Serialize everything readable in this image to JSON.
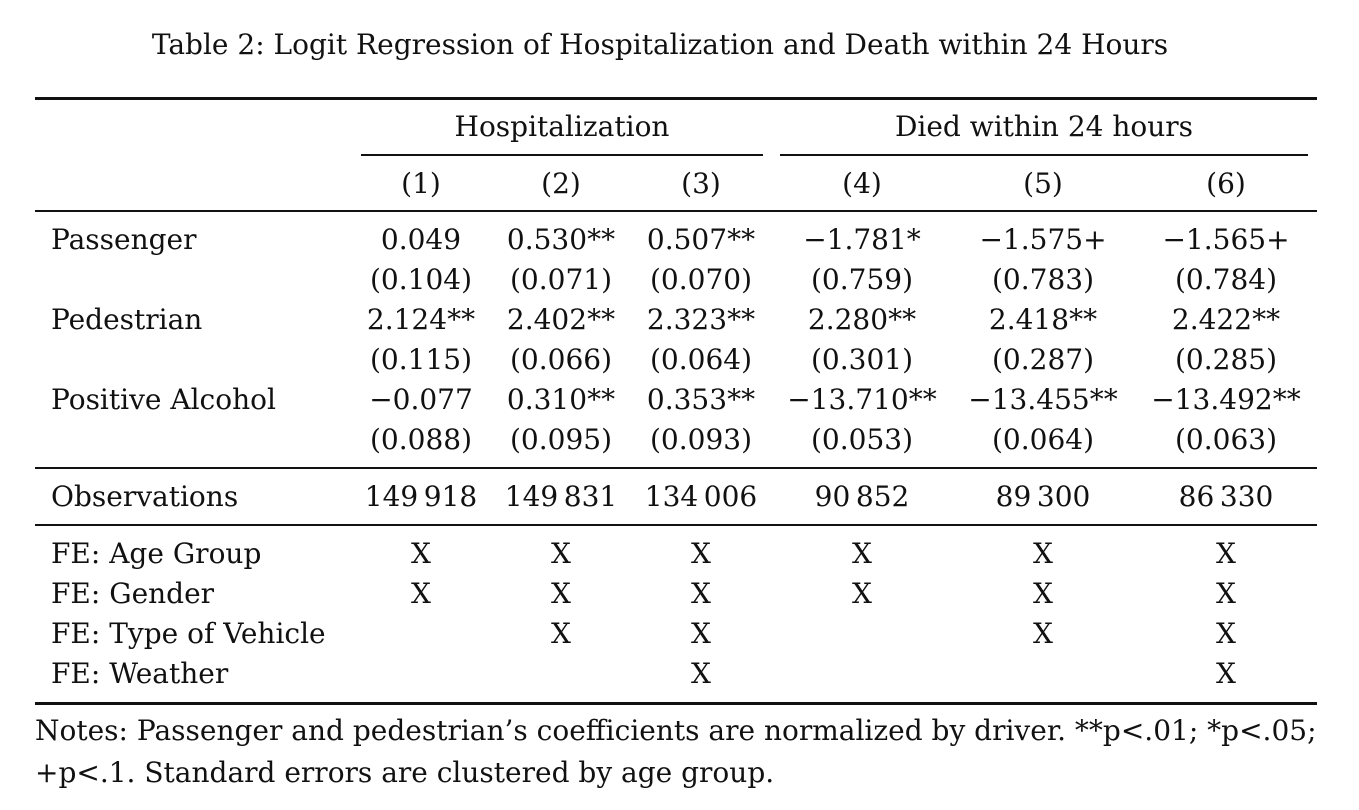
{
  "caption": "Table 2: Logit Regression of Hospitalization and Death within 24 Hours",
  "groups": [
    {
      "label": "Hospitalization"
    },
    {
      "label": "Died within 24 hours"
    }
  ],
  "columns": [
    "(1)",
    "(2)",
    "(3)",
    "(4)",
    "(5)",
    "(6)"
  ],
  "coef_rows": [
    {
      "label": "Passenger",
      "coefs": [
        "0.049",
        "0.530**",
        "0.507**",
        "−1.781*",
        "−1.575+",
        "−1.565+"
      ],
      "ses": [
        "(0.104)",
        "(0.071)",
        "(0.070)",
        "(0.759)",
        "(0.783)",
        "(0.784)"
      ]
    },
    {
      "label": "Pedestrian",
      "coefs": [
        "2.124**",
        "2.402**",
        "2.323**",
        "2.280**",
        "2.418**",
        "2.422**"
      ],
      "ses": [
        "(0.115)",
        "(0.066)",
        "(0.064)",
        "(0.301)",
        "(0.287)",
        "(0.285)"
      ]
    },
    {
      "label": "Positive Alcohol",
      "coefs": [
        "−0.077",
        "0.310**",
        "0.353**",
        "−13.710**",
        "−13.455**",
        "−13.492**"
      ],
      "ses": [
        "(0.088)",
        "(0.095)",
        "(0.093)",
        "(0.053)",
        "(0.064)",
        "(0.063)"
      ]
    }
  ],
  "observations": {
    "label": "Observations",
    "values": [
      "149 918",
      "149 831",
      "134 006",
      "90 852",
      "89 300",
      "86 330"
    ]
  },
  "fe_rows": [
    {
      "label": "FE: Age Group",
      "marks": [
        "X",
        "X",
        "X",
        "X",
        "X",
        "X"
      ]
    },
    {
      "label": "FE: Gender",
      "marks": [
        "X",
        "X",
        "X",
        "X",
        "X",
        "X"
      ]
    },
    {
      "label": "FE: Type of Vehicle",
      "marks": [
        "",
        "X",
        "X",
        "",
        "X",
        "X"
      ]
    },
    {
      "label": "FE: Weather",
      "marks": [
        "",
        "",
        "X",
        "",
        "",
        "X"
      ]
    }
  ],
  "notes": "Notes: Passenger and pedestrian’s coefficients are normalized by driver. **p<.01; *p<.05; +p<.1. Standard errors are clustered by age group."
}
